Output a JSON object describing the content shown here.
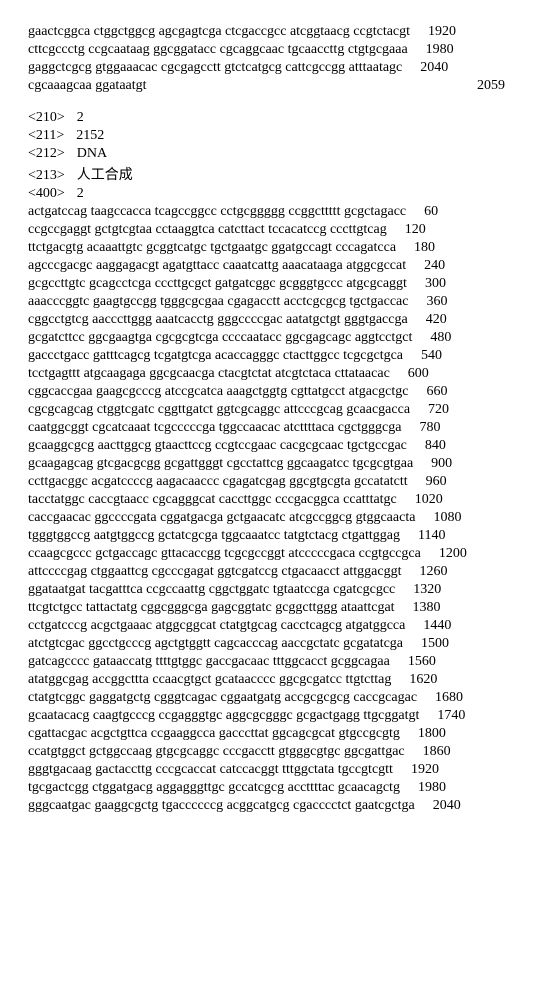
{
  "top_tail": [
    {
      "seq": "gaactcggca ctggctggcg agcgagtcga ctcgaccgcc atcggtaacg ccgtctacgt",
      "num": "1920"
    },
    {
      "seq": "cttcgccctg ccgcaataag ggcggatacc cgcaggcaac tgcaaccttg ctgtgcgaaa",
      "num": "1980"
    },
    {
      "seq": "gaggctcgcg gtggaaacac cgcgagcctt gtctcatgcg cattcgccgg atttaatagc",
      "num": "2040"
    },
    {
      "seq": "cgcaaagcaa ggataatgt",
      "num": "2059",
      "right": true
    }
  ],
  "header": [
    {
      "tag": "<210>",
      "val": "2"
    },
    {
      "tag": "<211>",
      "val": "2152"
    },
    {
      "tag": "<212>",
      "val": "DNA"
    },
    {
      "tag": "<213>",
      "val": "人工合成"
    },
    {
      "tag": "<400>",
      "val": "2"
    }
  ],
  "seq2": [
    {
      "seq": "actgatccag taagccacca tcagccggcc cctgcggggg ccggcttttt gcgctagacc",
      "num": "60"
    },
    {
      "seq": "ccgccgaggt gctgtcgtaa cctaaggtca catcttact tccacatccg cccttgtcag",
      "num": "120"
    },
    {
      "seq": "ttctgacgtg acaaattgtc gcggtcatgc tgctgaatgc ggatgccagt cccagatcca",
      "num": "180"
    },
    {
      "seq": "agcccgacgc aaggagacgt agatgttacc caaatcattg aaacataaga atggcgccat",
      "num": "240"
    },
    {
      "seq": "gcgccttgtc gcagcctcga cccttgcgct gatgatcggc gcgggtgccc atgcgcaggt",
      "num": "300"
    },
    {
      "seq": "aaacccggtc gaagtgccgg tgggcgcgaa cgagacctt acctcgcgcg tgctgaccac",
      "num": "360"
    },
    {
      "seq": "cggcctgtcg aacccttggg aaatcacctg gggccccgac aatatgctgt gggtgaccga",
      "num": "420"
    },
    {
      "seq": "gcgatcttcc ggcgaagtga cgcgcgtcga ccccaatacc ggcgagcagc aggtcctgct",
      "num": "480"
    },
    {
      "seq": "gaccctgacc gatttcagcg tcgatgtcga acaccagggc ctacttggcc tcgcgctgca",
      "num": "540"
    },
    {
      "seq": "tcctgagttt atgcaagaga ggcgcaacga ctacgtctat atcgtctaca cttataacac",
      "num": "600"
    },
    {
      "seq": "cggcaccgaa gaagcgcccg atccgcatca aaagctggtg cgttatgcct atgacgctgc",
      "num": "660"
    },
    {
      "seq": "cgcgcagcag ctggtcgatc cggttgatct ggtcgcaggc attcccgcag gcaacgacca",
      "num": "720"
    },
    {
      "seq": "caatggcggt cgcatcaaat tcgcccccga tggccaacac atcttttaca cgctgggcga",
      "num": "780"
    },
    {
      "seq": "gcaaggcgcg aacttggcg gtaacttccg ccgtccgaac cacgcgcaac tgctgccgac",
      "num": "840"
    },
    {
      "seq": "gcaagagcag gtcgacgcgg gcgattgggt cgcctattcg ggcaagatcc tgcgcgtgaa",
      "num": "900"
    },
    {
      "seq": "ccttgacggc acgatccccg aagacaaccc cgagatcgag ggcgtgcgta gccatatctt",
      "num": "960"
    },
    {
      "seq": "tacctatggc caccgtaacc cgcagggcat caccttggc cccgacggca ccatttatgc",
      "num": "1020"
    },
    {
      "seq": "caccgaacac ggccccgata cggatgacga gctgaacatc atcgccggcg gtggcaacta",
      "num": "1080"
    },
    {
      "seq": "tgggtggccg aatgtggccg gctatcgcga tggcaaatcc tatgtctacg ctgattggag",
      "num": "1140"
    },
    {
      "seq": "ccaagcgccc gctgaccagc gttacaccgg tcgcgccggt atcccccgaca ccgtgccgca",
      "num": "1200"
    },
    {
      "seq": "attccccgag ctggaattcg cgcccgagat ggtcgatccg ctgacaacct attggacggt",
      "num": "1260"
    },
    {
      "seq": "ggataatgat tacgatttca ccgccaattg cggctggatc tgtaatccga cgatcgcgcc",
      "num": "1320"
    },
    {
      "seq": "ttcgtctgcc tattactatg cggcgggcga gagcggtatc gcggcttggg ataattcgat",
      "num": "1380"
    },
    {
      "seq": "cctgatcccg acgctgaaac atggcggcat ctatgtgcag cacctcagcg atgatggcca",
      "num": "1440"
    },
    {
      "seq": "atctgtcgac ggcctgcccg agctgtggtt cagcacccag aaccgctatc gcgatatcga",
      "num": "1500"
    },
    {
      "seq": "gatcagcccc gataaccatg ttttgtggc gaccgacaac tttggcacct gcggcagaa",
      "num": "1560"
    },
    {
      "seq": "atatggcgag accggcttta ccaacgtgct gcataacccc ggcgcgatcc ttgtcttag",
      "num": "1620"
    },
    {
      "seq": "ctatgtcggc gaggatgctg cgggtcagac cggaatgatg accgcgcgcg caccgcagac",
      "num": "1680"
    },
    {
      "seq": "gcaatacacg caagtgcccg ccgagggtgc aggcgcgggc gcgactgagg ttgcggatgt",
      "num": "1740"
    },
    {
      "seq": "cgattacgac acgctgttca ccgaaggcca gacccttat ggcagcgcat gtgccgcgtg",
      "num": "1800"
    },
    {
      "seq": "ccatgtggct gctggccaag gtgcgcaggc cccgacctt gtgggcgtgc ggcgattgac",
      "num": "1860"
    },
    {
      "seq": "gggtgacaag gactaccttg cccgcaccat catccacggt tttggctata tgccgtcgtt",
      "num": "1920"
    },
    {
      "seq": "tgcgactcgg ctggatgacg aggagggttgc gccatcgcg accttttac gcaacagctg",
      "num": "1980"
    },
    {
      "seq": "gggcaatgac gaaggcgctg tgaccccccg acggcatgcg cgacccctct gaatcgctga",
      "num": "2040"
    }
  ]
}
